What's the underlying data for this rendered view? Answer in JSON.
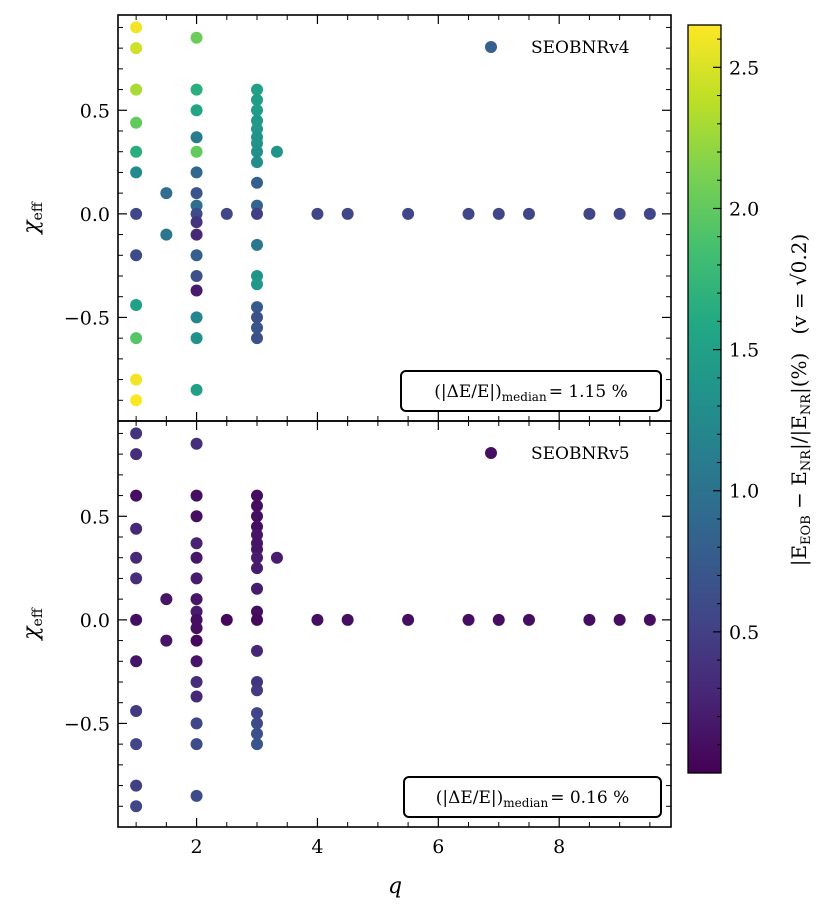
{
  "figure": {
    "xlabel": "q",
    "ylabel": "χ",
    "ylabel_sub": "eff",
    "colorbar": {
      "label_main": "|E",
      "label_sub1": "EOB",
      "label_mid": " − E",
      "label_sub2": "NR",
      "label_mid2": "|/|E",
      "label_sub3": "NR",
      "label_end": "|(%)",
      "label_note": "(v = √0.2)",
      "range": [
        0.0,
        2.65
      ],
      "ticks": [
        0.5,
        1.0,
        1.5,
        2.0,
        2.5
      ],
      "tick_labels": [
        "0.5",
        "1.0",
        "1.5",
        "2.0",
        "2.5"
      ],
      "colormap": "viridis"
    }
  },
  "chart_data": [
    {
      "type": "scatter",
      "legend": "SEOBNRv4",
      "legend_position": "top-right",
      "annotation_left": "(|ΔE/E|)",
      "annotation_sub": "median",
      "annotation_right": "= 1.15 %",
      "annotation_position": "bottom-right",
      "xlim": [
        0.7,
        9.85
      ],
      "ylim": [
        -1.0,
        0.96
      ],
      "xticks": [
        2,
        4,
        6,
        8
      ],
      "yticks": [
        -0.5,
        0.0,
        0.5
      ],
      "ytick_labels": [
        "−0.5",
        "0.0",
        "0.5"
      ],
      "points": [
        {
          "q": 1,
          "chi": 0.9,
          "err": 2.6
        },
        {
          "q": 1,
          "chi": 0.8,
          "err": 2.45
        },
        {
          "q": 1,
          "chi": 0.6,
          "err": 2.3
        },
        {
          "q": 1,
          "chi": 0.44,
          "err": 2.0
        },
        {
          "q": 1,
          "chi": 0.3,
          "err": 1.65
        },
        {
          "q": 1,
          "chi": 0.2,
          "err": 1.25
        },
        {
          "q": 1,
          "chi": 0.0,
          "err": 0.55
        },
        {
          "q": 1,
          "chi": -0.2,
          "err": 0.6
        },
        {
          "q": 1,
          "chi": -0.44,
          "err": 1.5
        },
        {
          "q": 1,
          "chi": -0.6,
          "err": 1.95
        },
        {
          "q": 1,
          "chi": -0.8,
          "err": 2.6
        },
        {
          "q": 1,
          "chi": -0.9,
          "err": 2.65
        },
        {
          "q": 1.5,
          "chi": 0.1,
          "err": 0.95
        },
        {
          "q": 1.5,
          "chi": -0.1,
          "err": 1.05
        },
        {
          "q": 2,
          "chi": 0.85,
          "err": 2.05
        },
        {
          "q": 2,
          "chi": 0.6,
          "err": 1.65
        },
        {
          "q": 2,
          "chi": 0.5,
          "err": 1.55
        },
        {
          "q": 2,
          "chi": 0.37,
          "err": 1.1
        },
        {
          "q": 2,
          "chi": 0.3,
          "err": 2.0
        },
        {
          "q": 2,
          "chi": 0.2,
          "err": 0.9
        },
        {
          "q": 2,
          "chi": 0.1,
          "err": 0.7
        },
        {
          "q": 2,
          "chi": 0.04,
          "err": 0.95
        },
        {
          "q": 2,
          "chi": 0.0,
          "err": 0.6
        },
        {
          "q": 2,
          "chi": -0.04,
          "err": 0.4
        },
        {
          "q": 2,
          "chi": -0.1,
          "err": 0.3
        },
        {
          "q": 2,
          "chi": -0.2,
          "err": 0.8
        },
        {
          "q": 2,
          "chi": -0.3,
          "err": 0.65
        },
        {
          "q": 2,
          "chi": -0.37,
          "err": 0.2
        },
        {
          "q": 2,
          "chi": -0.5,
          "err": 1.2
        },
        {
          "q": 2,
          "chi": -0.6,
          "err": 1.35
        },
        {
          "q": 2,
          "chi": -0.85,
          "err": 1.5
        },
        {
          "q": 2.5,
          "chi": 0.0,
          "err": 0.55
        },
        {
          "q": 3,
          "chi": 0.6,
          "err": 1.5
        },
        {
          "q": 3,
          "chi": 0.55,
          "err": 1.45
        },
        {
          "q": 3,
          "chi": 0.5,
          "err": 1.45
        },
        {
          "q": 3,
          "chi": 0.45,
          "err": 1.4
        },
        {
          "q": 3,
          "chi": 0.41,
          "err": 1.4
        },
        {
          "q": 3,
          "chi": 0.37,
          "err": 1.35
        },
        {
          "q": 3,
          "chi": 0.34,
          "err": 1.35
        },
        {
          "q": 3,
          "chi": 0.3,
          "err": 1.3
        },
        {
          "q": 3,
          "chi": 0.25,
          "err": 1.3
        },
        {
          "q": 3,
          "chi": 0.15,
          "err": 0.8
        },
        {
          "q": 3,
          "chi": 0.04,
          "err": 0.85
        },
        {
          "q": 3,
          "chi": 0.0,
          "err": 0.5
        },
        {
          "q": 3,
          "chi": -0.15,
          "err": 1.05
        },
        {
          "q": 3,
          "chi": -0.3,
          "err": 1.35
        },
        {
          "q": 3,
          "chi": -0.34,
          "err": 1.4
        },
        {
          "q": 3,
          "chi": -0.45,
          "err": 0.75
        },
        {
          "q": 3,
          "chi": -0.5,
          "err": 0.65
        },
        {
          "q": 3,
          "chi": -0.55,
          "err": 0.7
        },
        {
          "q": 3,
          "chi": -0.6,
          "err": 0.65
        },
        {
          "q": 3.33,
          "chi": 0.3,
          "err": 1.35
        },
        {
          "q": 4,
          "chi": 0.0,
          "err": 0.55
        },
        {
          "q": 4.5,
          "chi": 0.0,
          "err": 0.55
        },
        {
          "q": 5.5,
          "chi": 0.0,
          "err": 0.55
        },
        {
          "q": 6.5,
          "chi": 0.0,
          "err": 0.55
        },
        {
          "q": 7,
          "chi": 0.0,
          "err": 0.55
        },
        {
          "q": 7.5,
          "chi": 0.0,
          "err": 0.55
        },
        {
          "q": 8.5,
          "chi": 0.0,
          "err": 0.55
        },
        {
          "q": 9,
          "chi": 0.0,
          "err": 0.55
        },
        {
          "q": 9.5,
          "chi": 0.0,
          "err": 0.55
        }
      ]
    },
    {
      "type": "scatter",
      "legend": "SEOBNRv5",
      "legend_position": "top-right",
      "annotation_left": "(|ΔE/E|)",
      "annotation_sub": "median",
      "annotation_right": "= 0.16 %",
      "annotation_position": "bottom-right",
      "xlim": [
        0.7,
        9.85
      ],
      "ylim": [
        -1.0,
        0.96
      ],
      "xticks": [
        2,
        4,
        6,
        8
      ],
      "yticks": [
        -0.5,
        0.0,
        0.5
      ],
      "ytick_labels": [
        "−0.5",
        "0.0",
        "0.5"
      ],
      "points": [
        {
          "q": 1,
          "chi": 0.9,
          "err": 0.4
        },
        {
          "q": 1,
          "chi": 0.8,
          "err": 0.35
        },
        {
          "q": 1,
          "chi": 0.6,
          "err": 0.1
        },
        {
          "q": 1,
          "chi": 0.44,
          "err": 0.3
        },
        {
          "q": 1,
          "chi": 0.3,
          "err": 0.3
        },
        {
          "q": 1,
          "chi": 0.2,
          "err": 0.35
        },
        {
          "q": 1,
          "chi": 0.0,
          "err": 0.1
        },
        {
          "q": 1,
          "chi": -0.2,
          "err": 0.15
        },
        {
          "q": 1,
          "chi": -0.44,
          "err": 0.45
        },
        {
          "q": 1,
          "chi": -0.6,
          "err": 0.55
        },
        {
          "q": 1,
          "chi": -0.8,
          "err": 0.5
        },
        {
          "q": 1,
          "chi": -0.9,
          "err": 0.55
        },
        {
          "q": 1.5,
          "chi": 0.1,
          "err": 0.15
        },
        {
          "q": 1.5,
          "chi": -0.1,
          "err": 0.15
        },
        {
          "q": 2,
          "chi": 0.85,
          "err": 0.35
        },
        {
          "q": 2,
          "chi": 0.6,
          "err": 0.1
        },
        {
          "q": 2,
          "chi": 0.5,
          "err": 0.1
        },
        {
          "q": 2,
          "chi": 0.37,
          "err": 0.25
        },
        {
          "q": 2,
          "chi": 0.3,
          "err": 0.15
        },
        {
          "q": 2,
          "chi": 0.2,
          "err": 0.2
        },
        {
          "q": 2,
          "chi": 0.1,
          "err": 0.15
        },
        {
          "q": 2,
          "chi": 0.04,
          "err": 0.2
        },
        {
          "q": 2,
          "chi": 0.0,
          "err": 0.1
        },
        {
          "q": 2,
          "chi": -0.04,
          "err": 0.1
        },
        {
          "q": 2,
          "chi": -0.1,
          "err": 0.05
        },
        {
          "q": 2,
          "chi": -0.2,
          "err": 0.15
        },
        {
          "q": 2,
          "chi": -0.3,
          "err": 0.35
        },
        {
          "q": 2,
          "chi": -0.37,
          "err": 0.3
        },
        {
          "q": 2,
          "chi": -0.5,
          "err": 0.55
        },
        {
          "q": 2,
          "chi": -0.6,
          "err": 0.6
        },
        {
          "q": 2,
          "chi": -0.85,
          "err": 0.6
        },
        {
          "q": 2.5,
          "chi": 0.0,
          "err": 0.05
        },
        {
          "q": 3,
          "chi": 0.6,
          "err": 0.1
        },
        {
          "q": 3,
          "chi": 0.55,
          "err": 0.1
        },
        {
          "q": 3,
          "chi": 0.5,
          "err": 0.1
        },
        {
          "q": 3,
          "chi": 0.45,
          "err": 0.1
        },
        {
          "q": 3,
          "chi": 0.41,
          "err": 0.15
        },
        {
          "q": 3,
          "chi": 0.37,
          "err": 0.15
        },
        {
          "q": 3,
          "chi": 0.34,
          "err": 0.15
        },
        {
          "q": 3,
          "chi": 0.3,
          "err": 0.2
        },
        {
          "q": 3,
          "chi": 0.25,
          "err": 0.2
        },
        {
          "q": 3,
          "chi": 0.15,
          "err": 0.2
        },
        {
          "q": 3,
          "chi": 0.04,
          "err": 0.1
        },
        {
          "q": 3,
          "chi": 0.0,
          "err": 0.05
        },
        {
          "q": 3,
          "chi": -0.15,
          "err": 0.3
        },
        {
          "q": 3,
          "chi": -0.3,
          "err": 0.4
        },
        {
          "q": 3,
          "chi": -0.34,
          "err": 0.45
        },
        {
          "q": 3,
          "chi": -0.45,
          "err": 0.55
        },
        {
          "q": 3,
          "chi": -0.5,
          "err": 0.6
        },
        {
          "q": 3,
          "chi": -0.55,
          "err": 0.65
        },
        {
          "q": 3,
          "chi": -0.6,
          "err": 0.7
        },
        {
          "q": 3.33,
          "chi": 0.3,
          "err": 0.2
        },
        {
          "q": 4,
          "chi": 0.0,
          "err": 0.1
        },
        {
          "q": 4.5,
          "chi": 0.0,
          "err": 0.1
        },
        {
          "q": 5.5,
          "chi": 0.0,
          "err": 0.1
        },
        {
          "q": 6.5,
          "chi": 0.0,
          "err": 0.1
        },
        {
          "q": 7,
          "chi": 0.0,
          "err": 0.1
        },
        {
          "q": 7.5,
          "chi": 0.0,
          "err": 0.1
        },
        {
          "q": 8.5,
          "chi": 0.0,
          "err": 0.1
        },
        {
          "q": 9,
          "chi": 0.0,
          "err": 0.1
        },
        {
          "q": 9.5,
          "chi": 0.0,
          "err": 0.1
        }
      ]
    }
  ]
}
